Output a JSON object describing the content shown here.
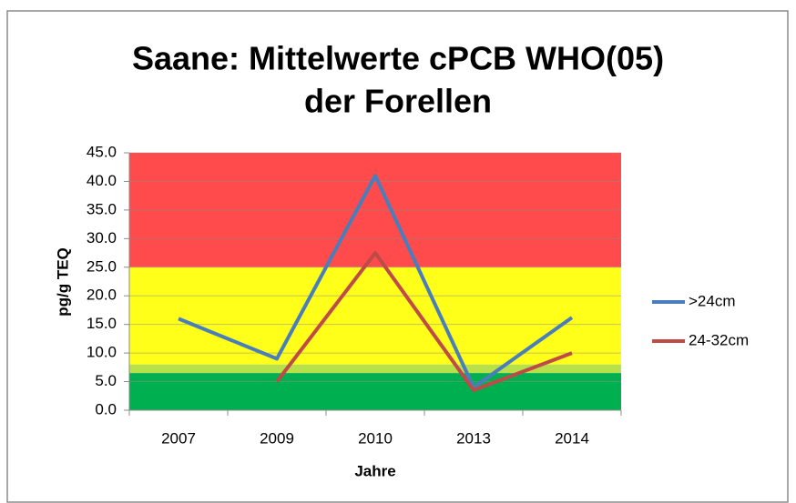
{
  "chart_data": {
    "type": "line",
    "title": [
      "Saane: Mittelwerte cPCB WHO(05)",
      "der Forellen"
    ],
    "xlabel": "Jahre",
    "ylabel": "pg/g TEQ",
    "categories": [
      "2007",
      "2009",
      "2010",
      "2013",
      "2014"
    ],
    "series": [
      {
        "name": ">24cm",
        "color": "#4a7ebb",
        "values": [
          16.0,
          9.0,
          41.0,
          4.0,
          16.2
        ]
      },
      {
        "name": "24-32cm",
        "color": "#be4b48",
        "values": [
          null,
          5.0,
          27.5,
          3.5,
          10.0
        ]
      }
    ],
    "bands": [
      {
        "from": 25,
        "to": 45,
        "color": "#ff4b4b"
      },
      {
        "from": 8,
        "to": 25,
        "color": "#ffff1a"
      },
      {
        "from": 6.5,
        "to": 8,
        "color": "#b8e04a"
      },
      {
        "from": 0,
        "to": 6.5,
        "color": "#00b050"
      }
    ],
    "ylim": [
      0,
      45
    ],
    "yticks": [
      {
        "value": 0,
        "label": "0.0"
      },
      {
        "value": 5,
        "label": "5.0"
      },
      {
        "value": 10,
        "label": "10.0"
      },
      {
        "value": 15,
        "label": "15.0"
      },
      {
        "value": 20,
        "label": "20.0"
      },
      {
        "value": 25,
        "label": "25.0"
      },
      {
        "value": 30,
        "label": "30.0"
      },
      {
        "value": 35,
        "label": "35.0"
      },
      {
        "value": 40,
        "label": "40.0"
      },
      {
        "value": 45,
        "label": "45.0"
      }
    ],
    "grid": true,
    "legend": "right"
  }
}
